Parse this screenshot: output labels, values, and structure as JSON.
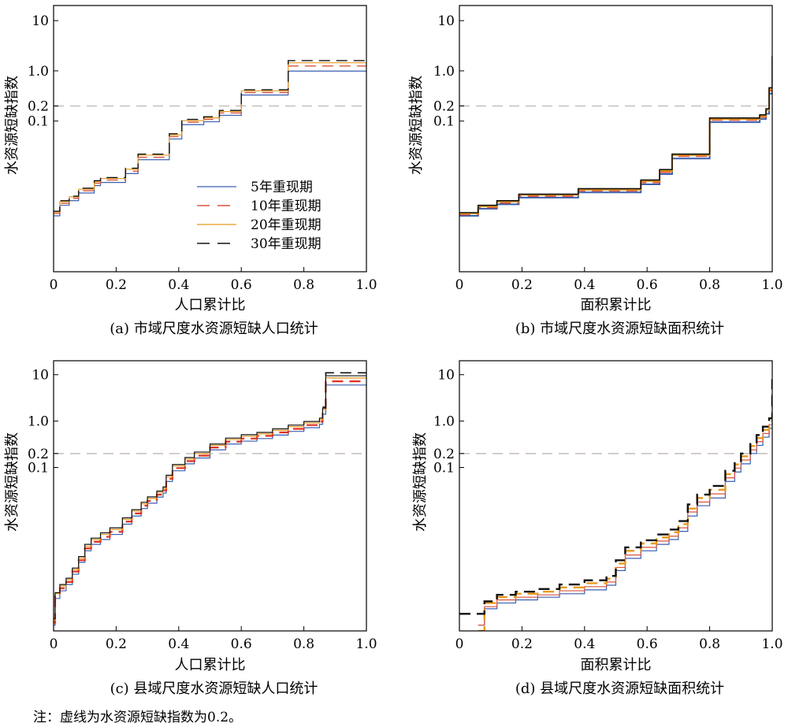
{
  "note": "注：虚线为水资源短缺指数为0.2。",
  "chart_data": [
    {
      "type": "line",
      "subtitle": "(a) 市域尺度水资源短缺人口统计",
      "xlabel": "人口累计比",
      "ylabel": "水资源短缺指数",
      "xlim": [
        0,
        1.0
      ],
      "yscale": "log",
      "ylim": [
        0.0001,
        20
      ],
      "y_ticks": [
        "10",
        "1.0",
        "0.2",
        "0.1"
      ],
      "x_ticks": [
        "0",
        "0.2",
        "0.4",
        "0.6",
        "0.8",
        "1.0"
      ],
      "threshold": 0.2,
      "legend_position": "center-right",
      "series": [
        {
          "name": "5年重现期",
          "color": "#3a5fb0",
          "dash": "solid",
          "width": 1.2,
          "x": [
            0,
            0.02,
            0.05,
            0.08,
            0.13,
            0.15,
            0.23,
            0.27,
            0.37,
            0.41,
            0.48,
            0.53,
            0.6,
            0.75,
            1.0
          ],
          "y": [
            0.0013,
            0.0021,
            0.0026,
            0.0037,
            0.0052,
            0.006,
            0.009,
            0.017,
            0.044,
            0.085,
            0.097,
            0.13,
            0.33,
            0.99,
            0.99
          ]
        },
        {
          "name": "10年重现期",
          "color": "#d9533d",
          "dash": "dash",
          "width": 1.4,
          "x": [
            0,
            0.02,
            0.05,
            0.08,
            0.13,
            0.15,
            0.23,
            0.27,
            0.37,
            0.41,
            0.48,
            0.53,
            0.6,
            0.75,
            1.0
          ],
          "y": [
            0.00145,
            0.0023,
            0.0029,
            0.0041,
            0.0058,
            0.0067,
            0.01,
            0.019,
            0.049,
            0.095,
            0.108,
            0.145,
            0.37,
            1.25,
            1.25
          ]
        },
        {
          "name": "20年重现期",
          "color": "#e89a1c",
          "dash": "solid",
          "width": 1.2,
          "x": [
            0,
            0.02,
            0.05,
            0.08,
            0.13,
            0.15,
            0.23,
            0.27,
            0.37,
            0.41,
            0.48,
            0.53,
            0.6,
            0.75,
            1.0
          ],
          "y": [
            0.00155,
            0.0025,
            0.0031,
            0.0044,
            0.0062,
            0.0072,
            0.011,
            0.021,
            0.053,
            0.102,
            0.116,
            0.155,
            0.4,
            1.45,
            1.45
          ]
        },
        {
          "name": "30年重现期",
          "color": "#111111",
          "dash": "dash",
          "width": 1.4,
          "x": [
            0,
            0.02,
            0.05,
            0.08,
            0.13,
            0.15,
            0.23,
            0.27,
            0.37,
            0.41,
            0.48,
            0.53,
            0.6,
            0.75,
            1.0
          ],
          "y": [
            0.0016,
            0.0026,
            0.0032,
            0.0046,
            0.0065,
            0.0075,
            0.0115,
            0.022,
            0.056,
            0.108,
            0.122,
            0.163,
            0.42,
            1.6,
            1.6
          ]
        }
      ]
    },
    {
      "type": "line",
      "subtitle": "(b) 市域尺度水资源短缺面积统计",
      "xlabel": "面积累计比",
      "ylabel": "水资源短缺指数",
      "xlim": [
        0,
        1.0
      ],
      "yscale": "log",
      "ylim": [
        0.0001,
        20
      ],
      "y_ticks": [
        "10",
        "1.0",
        "0.2",
        "0.1"
      ],
      "x_ticks": [
        "0",
        "0.2",
        "0.4",
        "0.6",
        "0.8",
        "1.0"
      ],
      "threshold": 0.2,
      "series": [
        {
          "name": "5年重现期",
          "color": "#3a5fb0",
          "dash": "solid",
          "width": 2.0,
          "x": [
            0,
            0.06,
            0.12,
            0.19,
            0.38,
            0.58,
            0.64,
            0.68,
            0.8,
            0.96,
            0.98,
            0.99,
            1.0
          ],
          "y": [
            0.0013,
            0.0018,
            0.0022,
            0.003,
            0.0038,
            0.0055,
            0.0088,
            0.018,
            0.095,
            0.11,
            0.14,
            0.35,
            1.5
          ]
        },
        {
          "name": "10年重现期",
          "color": "#d9533d",
          "dash": "dash",
          "width": 2.0,
          "x": [
            0,
            0.06,
            0.12,
            0.19,
            0.38,
            0.58,
            0.64,
            0.68,
            0.8,
            0.96,
            0.98,
            0.99,
            1.0
          ],
          "y": [
            0.00138,
            0.0019,
            0.00235,
            0.0032,
            0.0041,
            0.006,
            0.0096,
            0.02,
            0.105,
            0.12,
            0.155,
            0.4,
            1.7
          ]
        },
        {
          "name": "20年重现期",
          "color": "#e89a1c",
          "dash": "solid",
          "width": 2.0,
          "x": [
            0,
            0.06,
            0.12,
            0.19,
            0.38,
            0.58,
            0.64,
            0.68,
            0.8,
            0.96,
            0.98,
            0.99,
            1.0
          ],
          "y": [
            0.00145,
            0.002,
            0.0025,
            0.0034,
            0.0043,
            0.0064,
            0.0102,
            0.021,
            0.11,
            0.127,
            0.165,
            0.43,
            1.85
          ]
        },
        {
          "name": "30年重现期",
          "color": "#111111",
          "dash": "solid",
          "width": 1.6,
          "x": [
            0,
            0.06,
            0.12,
            0.19,
            0.38,
            0.58,
            0.64,
            0.68,
            0.8,
            0.96,
            0.98,
            0.99,
            1.0
          ],
          "y": [
            0.0015,
            0.0021,
            0.0026,
            0.0035,
            0.0045,
            0.0067,
            0.0108,
            0.022,
            0.115,
            0.133,
            0.175,
            0.46,
            2.0
          ]
        }
      ]
    },
    {
      "type": "line",
      "subtitle": "(c) 县域尺度水资源短缺人口统计",
      "xlabel": "人口累计比",
      "ylabel": "水资源短缺指数",
      "xlim": [
        0,
        1.0
      ],
      "yscale": "log",
      "ylim": [
        3e-05,
        20
      ],
      "y_ticks": [
        "10",
        "1.0",
        "0.2",
        "0.1"
      ],
      "x_ticks": [
        "0",
        "0.2",
        "0.4",
        "0.6",
        "0.8",
        "1.0"
      ],
      "threshold": 0.2,
      "series": [
        {
          "name": "5年重现期",
          "color": "#3a5fb0",
          "dash": "solid",
          "width": 1.2,
          "x": [
            0,
            0.005,
            0.02,
            0.04,
            0.06,
            0.08,
            0.1,
            0.12,
            0.15,
            0.18,
            0.22,
            0.25,
            0.28,
            0.3,
            0.33,
            0.35,
            0.36,
            0.38,
            0.42,
            0.45,
            0.5,
            0.55,
            0.6,
            0.65,
            0.7,
            0.75,
            0.8,
            0.85,
            0.86,
            0.87,
            1.0
          ],
          "y": [
            4e-05,
            0.00015,
            0.00022,
            0.0003,
            0.0005,
            0.0009,
            0.0016,
            0.0022,
            0.0028,
            0.0036,
            0.006,
            0.009,
            0.013,
            0.017,
            0.023,
            0.028,
            0.05,
            0.085,
            0.12,
            0.16,
            0.24,
            0.32,
            0.37,
            0.42,
            0.5,
            0.6,
            0.72,
            0.85,
            1.4,
            6.0,
            6.0
          ]
        },
        {
          "name": "10年重现期",
          "color": "#e03020",
          "dash": "dash",
          "width": 2.2,
          "x": [
            0,
            0.005,
            0.02,
            0.04,
            0.06,
            0.08,
            0.1,
            0.12,
            0.15,
            0.18,
            0.22,
            0.25,
            0.28,
            0.3,
            0.33,
            0.35,
            0.36,
            0.38,
            0.42,
            0.45,
            0.5,
            0.55,
            0.6,
            0.65,
            0.7,
            0.75,
            0.8,
            0.85,
            0.86,
            0.87,
            1.0
          ],
          "y": [
            4.5e-05,
            0.00017,
            0.00025,
            0.00034,
            0.00057,
            0.001,
            0.0018,
            0.0025,
            0.0032,
            0.0041,
            0.0068,
            0.0102,
            0.015,
            0.019,
            0.026,
            0.032,
            0.057,
            0.097,
            0.137,
            0.18,
            0.27,
            0.36,
            0.42,
            0.48,
            0.57,
            0.68,
            0.82,
            0.97,
            1.6,
            7.2,
            7.2
          ]
        },
        {
          "name": "20年重现期",
          "color": "#e89a1c",
          "dash": "solid",
          "width": 1.2,
          "x": [
            0,
            0.005,
            0.02,
            0.04,
            0.06,
            0.08,
            0.1,
            0.12,
            0.15,
            0.18,
            0.22,
            0.25,
            0.28,
            0.3,
            0.33,
            0.35,
            0.36,
            0.38,
            0.42,
            0.45,
            0.5,
            0.55,
            0.6,
            0.65,
            0.7,
            0.75,
            0.8,
            0.85,
            0.86,
            0.87,
            1.0
          ],
          "y": [
            5e-05,
            0.00019,
            0.00028,
            0.00038,
            0.00063,
            0.0011,
            0.002,
            0.0028,
            0.0036,
            0.0046,
            0.0076,
            0.0114,
            0.0165,
            0.0215,
            0.029,
            0.0355,
            0.063,
            0.108,
            0.152,
            0.2,
            0.3,
            0.4,
            0.47,
            0.53,
            0.63,
            0.76,
            0.91,
            1.08,
            1.78,
            8.5,
            8.5
          ]
        },
        {
          "name": "30年重现期",
          "color": "#111111",
          "dash": "solid",
          "width": 1.2,
          "x": [
            0,
            0.005,
            0.02,
            0.04,
            0.06,
            0.08,
            0.1,
            0.12,
            0.15,
            0.18,
            0.22,
            0.25,
            0.28,
            0.3,
            0.33,
            0.35,
            0.36,
            0.38,
            0.42,
            0.45,
            0.5,
            0.55,
            0.6,
            0.65,
            0.7,
            0.75,
            0.8,
            0.85,
            0.86,
            0.87,
            1.0
          ],
          "y": [
            5.5e-05,
            0.0002,
            0.0003,
            0.00041,
            0.00068,
            0.0012,
            0.0022,
            0.003,
            0.0039,
            0.005,
            0.0082,
            0.0123,
            0.0178,
            0.0232,
            0.031,
            0.038,
            0.068,
            0.116,
            0.164,
            0.215,
            0.32,
            0.43,
            0.51,
            0.57,
            0.68,
            0.82,
            0.98,
            1.16,
            1.9,
            9.5,
            9.5
          ]
        },
        {
          "name": "30年重现期",
          "color": "#111111",
          "dash": "dash",
          "width": 1.6,
          "x": [
            0.86,
            0.87,
            1.0
          ],
          "y": [
            2.0,
            11.0,
            11.0
          ]
        }
      ]
    },
    {
      "type": "line",
      "subtitle": "(d) 县域尺度水资源短缺面积统计",
      "xlabel": "面积累计比",
      "ylabel": "水资源短缺指数",
      "xlim": [
        0,
        1.0
      ],
      "yscale": "log",
      "ylim": [
        3e-05,
        20
      ],
      "y_ticks": [
        "10",
        "1.0",
        "0.2",
        "0.1"
      ],
      "x_ticks": [
        "0",
        "0.2",
        "0.4",
        "0.6",
        "0.8",
        "1.0"
      ],
      "threshold": 0.2,
      "series": [
        {
          "name": "5年重现期",
          "color": "#3a5fb0",
          "dash": "solid",
          "width": 1.2,
          "x": [
            0.06,
            0.08,
            0.12,
            0.18,
            0.25,
            0.32,
            0.4,
            0.47,
            0.5,
            0.53,
            0.58,
            0.63,
            0.67,
            0.7,
            0.73,
            0.76,
            0.8,
            0.83,
            0.85,
            0.88,
            0.9,
            0.93,
            0.95,
            0.97,
            0.99,
            1.0
          ],
          "y": [
            4e-05,
            9e-05,
            0.00012,
            0.00014,
            0.00016,
            0.00019,
            0.00023,
            0.00029,
            0.0006,
            0.0011,
            0.0016,
            0.0022,
            0.0028,
            0.0042,
            0.009,
            0.015,
            0.022,
            0.022,
            0.05,
            0.08,
            0.12,
            0.2,
            0.3,
            0.45,
            0.7,
            3.0
          ]
        },
        {
          "name": "10年重现期",
          "color": "#d9533d",
          "dash": "solid",
          "width": 1.2,
          "x": [
            0.06,
            0.08,
            0.12,
            0.18,
            0.25,
            0.32,
            0.4,
            0.47,
            0.5,
            0.53,
            0.58,
            0.63,
            0.67,
            0.7,
            0.73,
            0.76,
            0.8,
            0.83,
            0.85,
            0.88,
            0.9,
            0.93,
            0.95,
            0.97,
            0.99,
            1.0
          ],
          "y": [
            4e-05,
            0.0001,
            0.00014,
            0.00016,
            0.00018,
            0.00022,
            0.00027,
            0.00034,
            0.0007,
            0.0013,
            0.0019,
            0.0026,
            0.0033,
            0.005,
            0.011,
            0.018,
            0.027,
            0.027,
            0.06,
            0.097,
            0.145,
            0.24,
            0.36,
            0.54,
            0.84,
            4.0
          ]
        },
        {
          "name": "20年重现期",
          "color": "#e89a1c",
          "dash": "dash",
          "width": 2.4,
          "x": [
            0.06,
            0.08,
            0.12,
            0.18,
            0.25,
            0.32,
            0.4,
            0.47,
            0.5,
            0.53,
            0.58,
            0.63,
            0.67,
            0.7,
            0.73,
            0.76,
            0.8,
            0.83,
            0.85,
            0.88,
            0.9,
            0.93,
            0.95,
            0.97,
            0.99,
            1.0
          ],
          "y": [
            3e-05,
            0.00012,
            0.00016,
            0.00019,
            0.00021,
            0.00026,
            0.00032,
            0.0004,
            0.00085,
            0.0016,
            0.0023,
            0.0031,
            0.004,
            0.006,
            0.013,
            0.022,
            0.033,
            0.033,
            0.072,
            0.116,
            0.174,
            0.29,
            0.43,
            0.65,
            1.0,
            5.5
          ]
        },
        {
          "name": "30年重现期",
          "color": "#111111",
          "dash": "dash",
          "width": 2.4,
          "x": [
            0,
            0.06,
            0.08,
            0.12,
            0.18,
            0.25,
            0.32,
            0.4,
            0.47,
            0.5,
            0.53,
            0.58,
            0.63,
            0.67,
            0.7,
            0.73,
            0.76,
            0.8,
            0.83,
            0.85,
            0.88,
            0.9,
            0.93,
            0.95,
            0.97,
            0.99,
            1.0
          ],
          "y": [
            7e-05,
            7e-05,
            0.00013,
            0.00018,
            0.00021,
            0.00024,
            0.0003,
            0.00037,
            0.00046,
            0.001,
            0.0019,
            0.0027,
            0.0036,
            0.0046,
            0.007,
            0.016,
            0.026,
            0.04,
            0.04,
            0.085,
            0.135,
            0.2,
            0.34,
            0.5,
            0.76,
            1.15,
            8.0
          ]
        }
      ]
    }
  ]
}
